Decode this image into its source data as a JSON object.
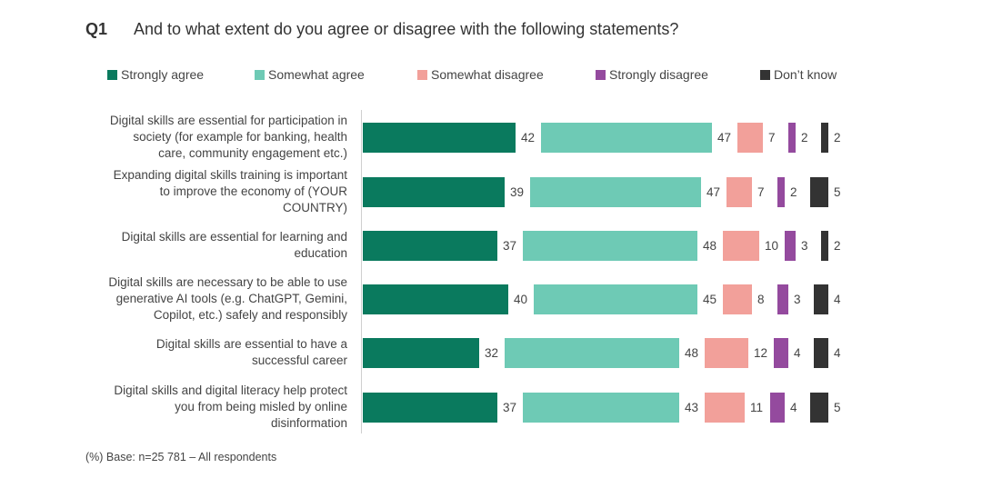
{
  "question_number": "Q1",
  "title": "And to what extent do you agree or disagree with the following statements?",
  "footnote": "(%) Base: n=25 781 – All respondents",
  "chart_data": {
    "type": "bar",
    "orientation": "horizontal",
    "stacked": false,
    "unit": "%",
    "legend_position": "top",
    "grid": false,
    "categories": [
      "Digital skills are essential for participation in society (for example for banking, health care, community engagement etc.)",
      "Expanding digital skills training is important to improve the economy of (YOUR COUNTRY)",
      "Digital skills are essential for learning and education",
      "Digital skills are necessary to be able to use generative AI tools (e.g. ChatGPT, Gemini, Copilot, etc.) safely and responsibly",
      "Digital skills are essential to have a successful career",
      "Digital skills and digital literacy help protect you from being misled by online disinformation"
    ],
    "series": [
      {
        "name": "Strongly agree",
        "color": "#0a7a5e",
        "values": [
          42,
          39,
          37,
          40,
          32,
          37
        ]
      },
      {
        "name": "Somewhat agree",
        "color": "#6ecab5",
        "values": [
          47,
          47,
          48,
          45,
          48,
          43
        ]
      },
      {
        "name": "Somewhat disagree",
        "color": "#f2a09a",
        "values": [
          7,
          7,
          10,
          8,
          12,
          11
        ]
      },
      {
        "name": "Strongly disagree",
        "color": "#944a9e",
        "values": [
          2,
          2,
          3,
          3,
          4,
          4
        ]
      },
      {
        "name": "Don’t know",
        "color": "#333333",
        "values": [
          2,
          5,
          2,
          4,
          4,
          5
        ]
      }
    ]
  }
}
